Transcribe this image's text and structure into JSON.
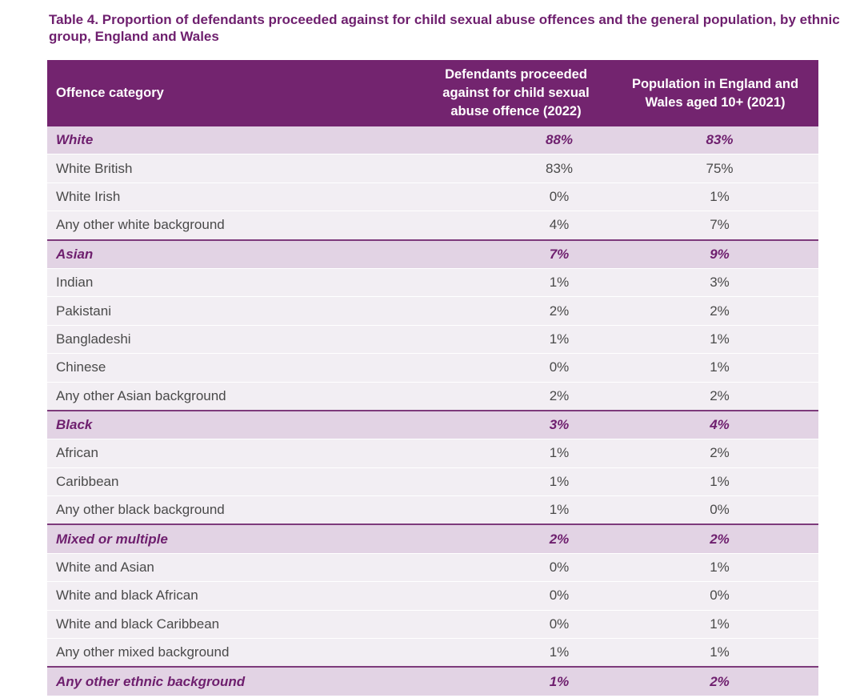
{
  "title": "Table 4. Proportion of defendants proceeded against for child sexual abuse offences and the general population, by ethnic group, England and Wales",
  "columns": {
    "category": "Offence category",
    "defendants": "Defendants proceeded against for child sexual abuse offence (2022)",
    "population": "Population in England and Wales aged 10+ (2021)"
  },
  "rows": [
    {
      "label": "White",
      "defendants": "88%",
      "population": "83%",
      "group": true
    },
    {
      "label": "White British",
      "defendants": "83%",
      "population": "75%"
    },
    {
      "label": "White Irish",
      "defendants": "0%",
      "population": "1%"
    },
    {
      "label": "Any other white background",
      "defendants": "4%",
      "population": "7%"
    },
    {
      "label": "Asian",
      "defendants": "7%",
      "population": "9%",
      "group": true
    },
    {
      "label": "Indian",
      "defendants": "1%",
      "population": "3%"
    },
    {
      "label": "Pakistani",
      "defendants": "2%",
      "population": "2%"
    },
    {
      "label": "Bangladeshi",
      "defendants": "1%",
      "population": "1%"
    },
    {
      "label": "Chinese",
      "defendants": "0%",
      "population": "1%"
    },
    {
      "label": "Any other Asian background",
      "defendants": "2%",
      "population": "2%"
    },
    {
      "label": "Black",
      "defendants": "3%",
      "population": "4%",
      "group": true
    },
    {
      "label": "African",
      "defendants": "1%",
      "population": "2%"
    },
    {
      "label": "Caribbean",
      "defendants": "1%",
      "population": "1%"
    },
    {
      "label": "Any other black background",
      "defendants": "1%",
      "population": "0%"
    },
    {
      "label": "Mixed or multiple",
      "defendants": "2%",
      "population": "2%",
      "group": true
    },
    {
      "label": "White and Asian",
      "defendants": "0%",
      "population": "1%"
    },
    {
      "label": "White and black African",
      "defendants": "0%",
      "population": "0%"
    },
    {
      "label": "White and black Caribbean",
      "defendants": "0%",
      "population": "1%"
    },
    {
      "label": "Any other mixed background",
      "defendants": "1%",
      "population": "1%"
    },
    {
      "label": "Any other ethnic background",
      "defendants": "1%",
      "population": "2%",
      "group": true
    }
  ],
  "colors": {
    "header_bg": "#73246f",
    "group_bg": "#e2d3e4",
    "row_bg": "#f2eef3",
    "accent_text": "#6e1f6e"
  }
}
